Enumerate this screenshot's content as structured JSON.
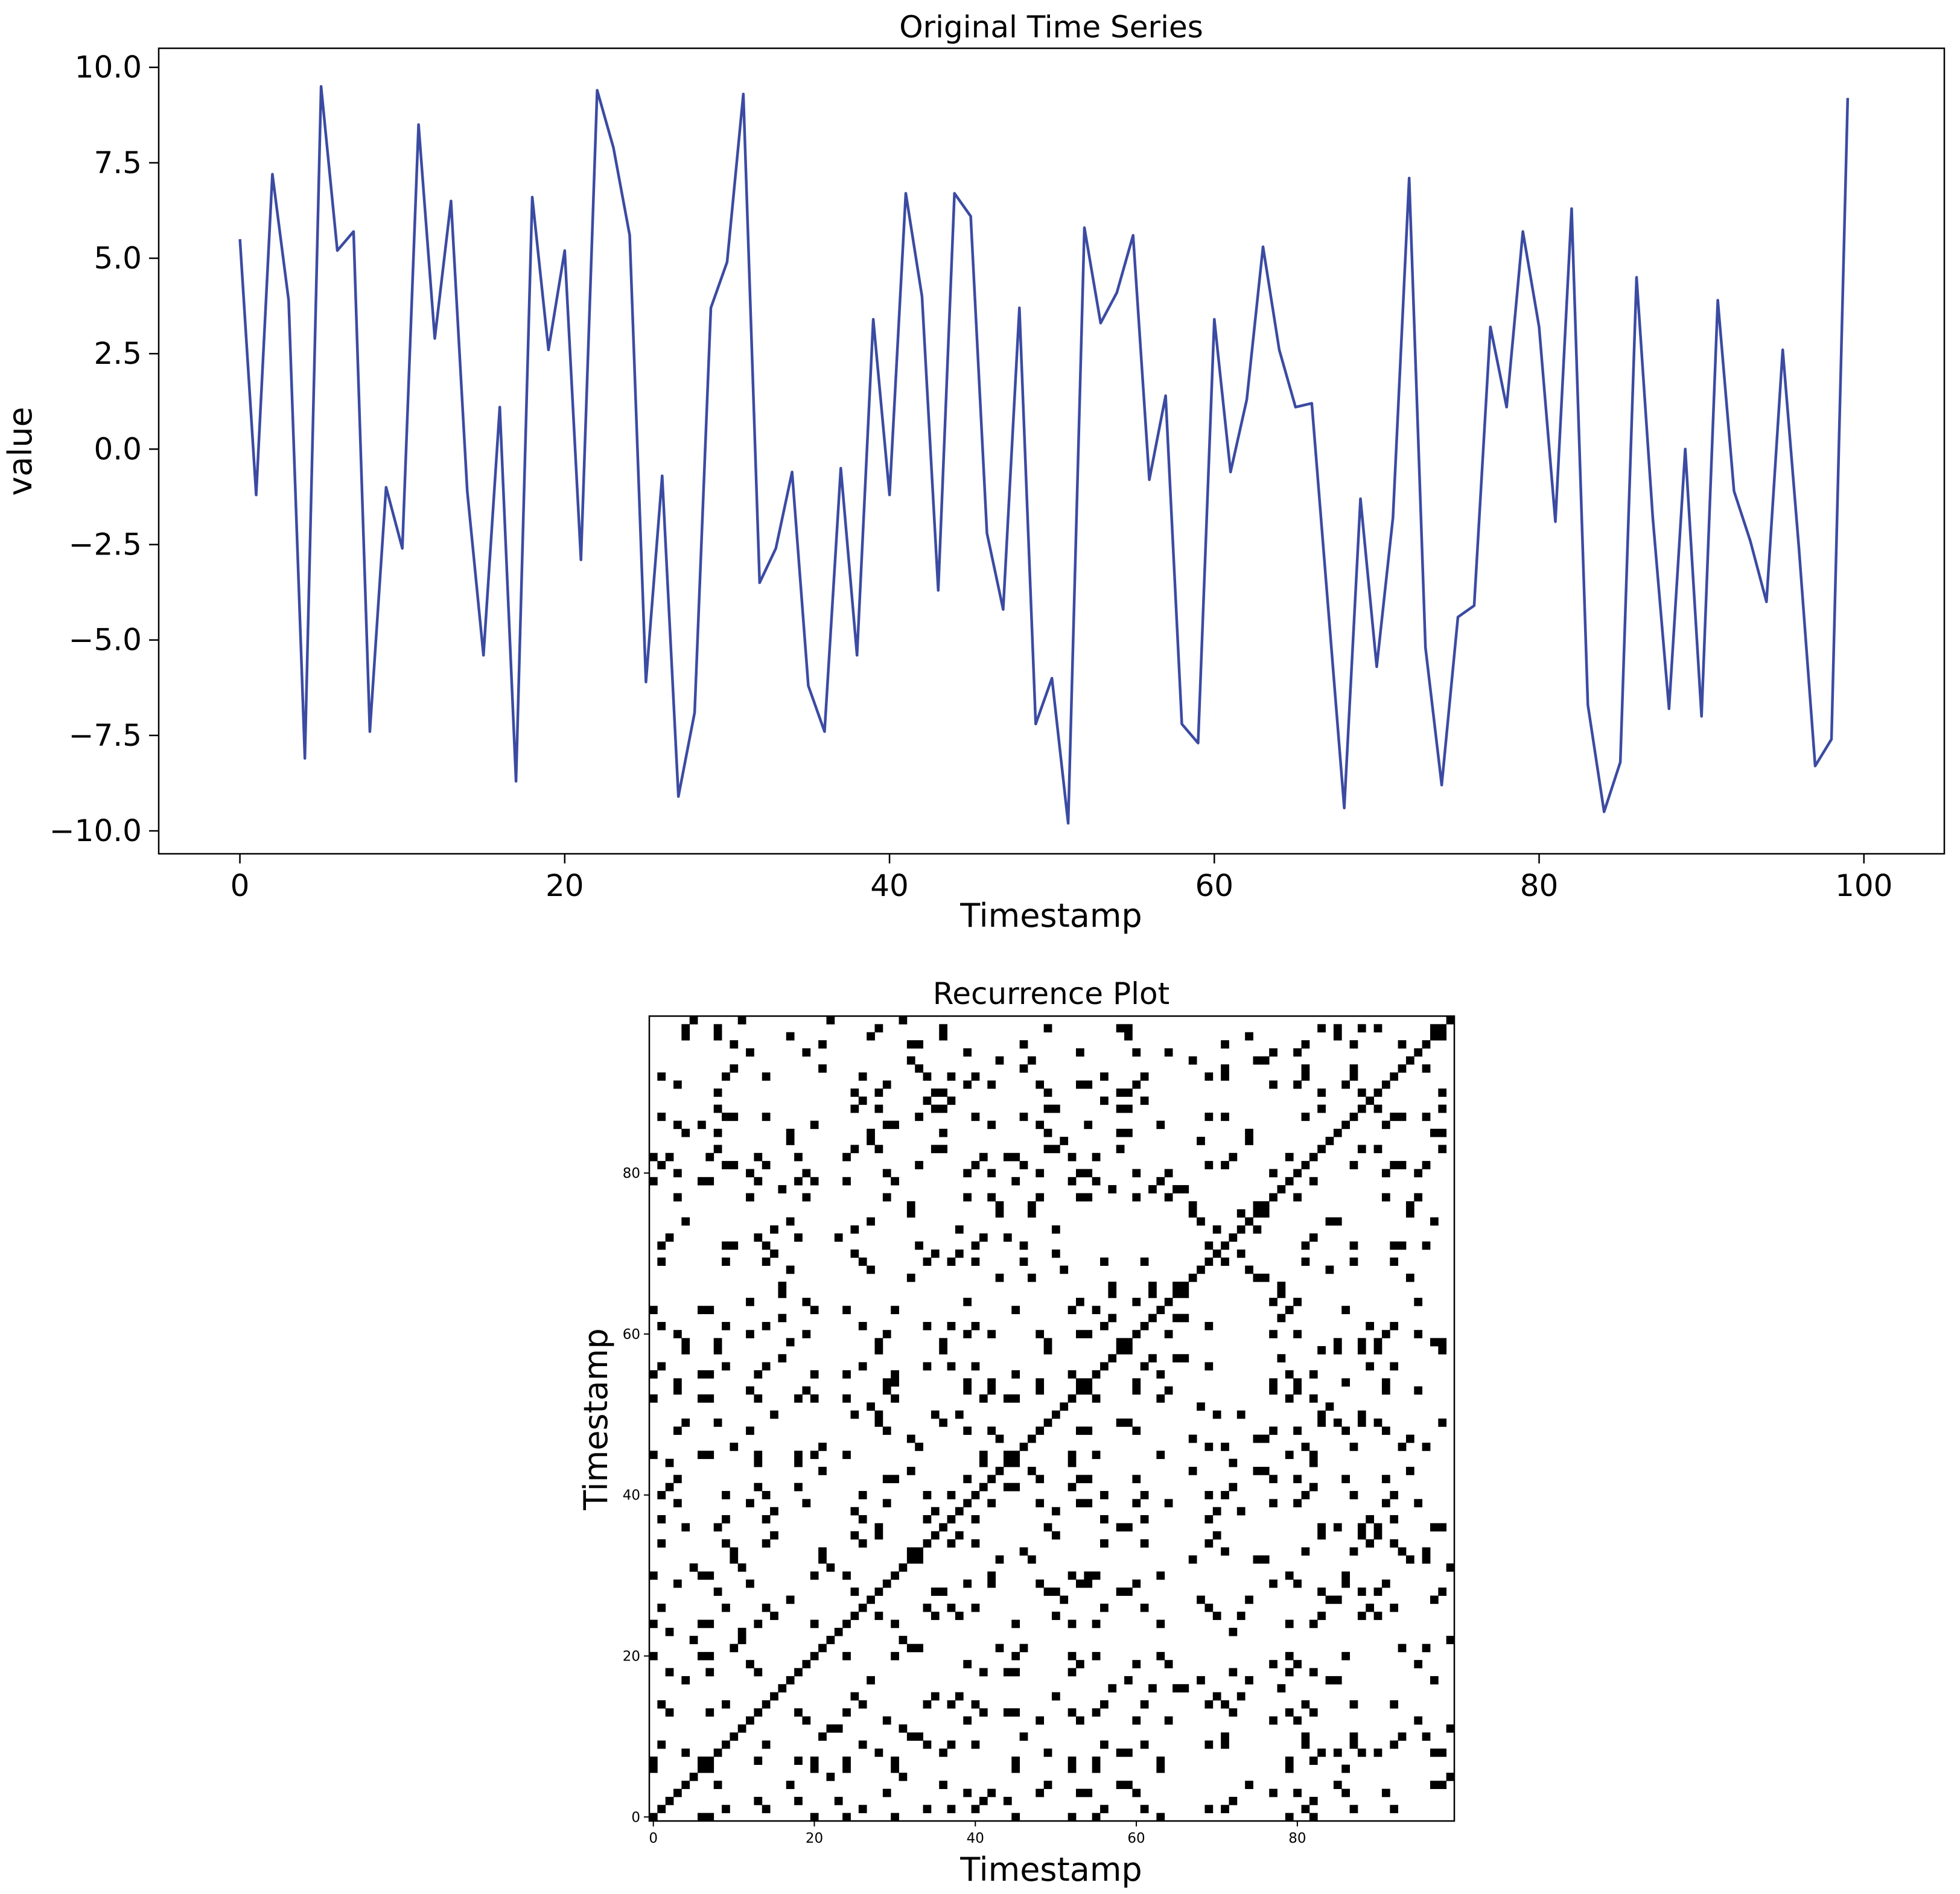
{
  "colors": {
    "line": "#3b4ba2",
    "black": "#000000",
    "white": "#ffffff"
  },
  "chart_data": [
    {
      "type": "line",
      "title": "Original Time Series",
      "xlabel": "Timestamp",
      "ylabel": "value",
      "xlim": [
        -5,
        104.95
      ],
      "ylim": [
        -10.6,
        10.5
      ],
      "xticks": [
        0,
        20,
        40,
        60,
        80,
        100
      ],
      "xtick_labels": [
        "0",
        "20",
        "40",
        "60",
        "80",
        "100"
      ],
      "yticks": [
        10.0,
        7.5,
        5.0,
        2.5,
        0.0,
        -2.5,
        -5.0,
        -7.5,
        -10.0
      ],
      "ytick_labels": [
        "10.0",
        "7.5",
        "5.0",
        "2.5",
        "0.0",
        "−2.5",
        "−5.0",
        "−7.5",
        "−10.0"
      ],
      "grid": false,
      "series": [
        {
          "color": "#3b4ba2",
          "x": [
            0,
            1,
            2,
            3,
            4,
            5,
            6,
            7,
            8,
            9,
            10,
            11,
            12,
            13,
            14,
            15,
            16,
            17,
            18,
            19,
            20,
            21,
            22,
            23,
            24,
            25,
            26,
            27,
            28,
            29,
            30,
            31,
            32,
            33,
            34,
            35,
            36,
            37,
            38,
            39,
            40,
            41,
            42,
            43,
            44,
            45,
            46,
            47,
            48,
            49,
            50,
            51,
            52,
            53,
            54,
            55,
            56,
            57,
            58,
            59,
            60,
            61,
            62,
            63,
            64,
            65,
            66,
            67,
            68,
            69,
            70,
            71,
            72,
            73,
            74,
            75,
            76,
            77,
            78,
            79,
            80,
            81,
            82,
            83,
            84,
            85,
            86,
            87,
            88,
            89,
            90,
            91,
            92,
            93,
            94,
            95,
            96,
            97,
            98,
            99
          ],
          "y": [
            5.5,
            -1.2,
            7.2,
            3.9,
            -8.1,
            9.5,
            5.2,
            5.7,
            -7.4,
            -1.0,
            -2.6,
            8.5,
            2.9,
            6.5,
            -1.1,
            -5.4,
            1.1,
            -8.7,
            6.6,
            2.6,
            5.2,
            -2.9,
            9.4,
            7.9,
            5.6,
            -6.1,
            -0.7,
            -9.1,
            -6.9,
            3.7,
            4.9,
            9.3,
            -3.5,
            -2.6,
            -0.6,
            -6.2,
            -7.4,
            -0.5,
            -5.4,
            3.4,
            -1.2,
            6.7,
            4.0,
            -3.7,
            6.7,
            6.1,
            -2.2,
            -4.2,
            3.7,
            -7.2,
            -6.0,
            -9.8,
            5.8,
            3.3,
            4.1,
            5.6,
            -0.8,
            1.4,
            -7.2,
            -7.7,
            3.4,
            -0.6,
            1.3,
            5.3,
            2.6,
            1.1,
            1.2,
            -4.1,
            -9.4,
            -1.3,
            -5.7,
            -1.8,
            7.1,
            -5.2,
            -8.8,
            -4.4,
            -4.1,
            3.2,
            1.1,
            5.7,
            3.2,
            -1.9,
            6.3,
            -6.7,
            -9.5,
            -8.2,
            4.5,
            -1.8,
            -6.8,
            0.0,
            -7.0,
            3.9,
            -1.1,
            -2.4,
            -4.0,
            2.6,
            -2.6,
            -8.3,
            -7.6,
            9.2
          ]
        }
      ]
    },
    {
      "type": "heatmap",
      "title": "Recurrence Plot",
      "xlabel": "Timestamp",
      "ylabel": "Timestamp",
      "n": 100,
      "threshold": 1.0,
      "origin": "lower",
      "xticks": [
        0,
        20,
        40,
        60,
        80
      ],
      "xtick_labels": [
        "0",
        "20",
        "40",
        "60",
        "80"
      ],
      "yticks": [
        0,
        20,
        40,
        60,
        80
      ],
      "ytick_labels": [
        "0",
        "20",
        "40",
        "60",
        "80"
      ],
      "colormap": "binary (black = recurrence)"
    }
  ]
}
